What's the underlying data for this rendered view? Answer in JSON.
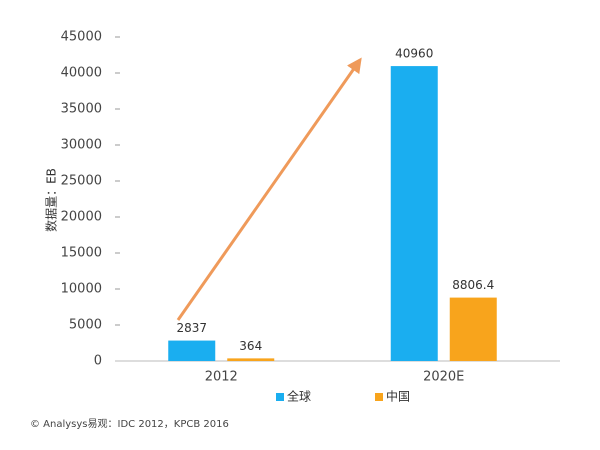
{
  "chart_data": {
    "type": "bar",
    "y_label": "数据量：EB",
    "source": "© Analysys易观：IDC 2012，KPCB 2016",
    "categories": [
      "2012",
      "2020E"
    ],
    "series": [
      {
        "name": "全球",
        "color": "#1aaef0",
        "values": [
          2837,
          40960
        ]
      },
      {
        "name": "中国",
        "color": "#f8a41c",
        "values": [
          364,
          8806.4
        ]
      }
    ],
    "ylim": [
      0,
      45000
    ],
    "yticks": [
      0,
      5000,
      10000,
      15000,
      20000,
      25000,
      30000,
      35000,
      40000,
      45000
    ],
    "legend": "bottom"
  }
}
